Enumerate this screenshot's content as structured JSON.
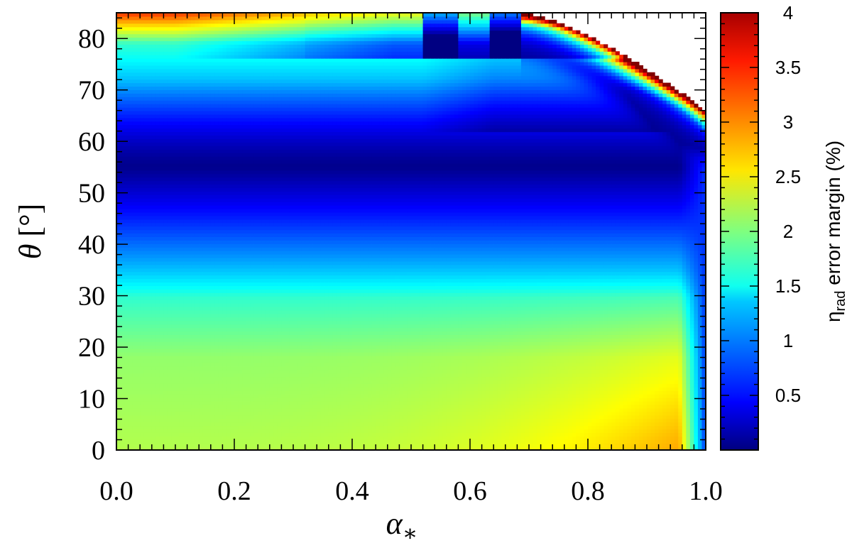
{
  "chart_data": {
    "type": "heatmap",
    "title": "",
    "xlabel": "α",
    "xlabel_sub": "∗",
    "ylabel": "θ",
    "ylabel_unit": "[°]",
    "xlim": [
      0.0,
      1.0
    ],
    "ylim": [
      0,
      85
    ],
    "x_ticks": [
      0.0,
      0.2,
      0.4,
      0.6,
      0.8,
      1.0
    ],
    "x_tick_labels": [
      "0.0",
      "0.2",
      "0.4",
      "0.6",
      "0.8",
      "1.0"
    ],
    "y_ticks": [
      0,
      10,
      20,
      30,
      40,
      50,
      60,
      70,
      80
    ],
    "y_tick_labels": [
      "0",
      "10",
      "20",
      "30",
      "40",
      "50",
      "60",
      "70",
      "80"
    ],
    "colorbar": {
      "label_main": "η",
      "label_sub": "rad",
      "label_rest": " error margin (%)",
      "range": [
        0.0,
        4.0
      ],
      "ticks": [
        0.5,
        1,
        1.5,
        2,
        2.5,
        3,
        3.5,
        4
      ],
      "tick_labels": [
        "0.5",
        "1",
        "1.5",
        "2",
        "2.5",
        "3",
        "3.5",
        "4"
      ],
      "colormap": "jet"
    },
    "minimum_band_theta": 55,
    "undefined_region": "top-right",
    "grid": false
  }
}
